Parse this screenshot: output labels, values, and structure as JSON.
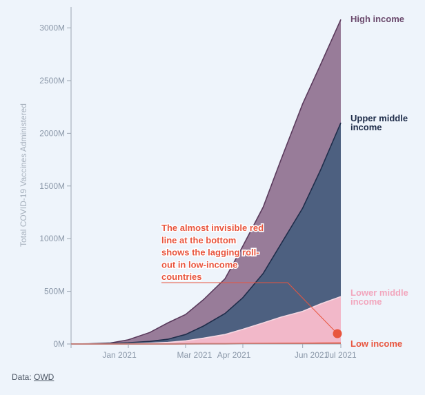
{
  "chart_data": {
    "type": "area",
    "stacked": true,
    "title": "",
    "xlabel": "",
    "ylabel": "Total COVID-19 Vaccines Administered",
    "x_ticks": [
      "Jan 2021",
      "Mar 2021",
      "Apr 2021",
      "Jun 2021",
      "Jul 2021"
    ],
    "y_ticks": [
      "0M",
      "500M",
      "1000M",
      "1500M",
      "2000M",
      "2500M",
      "3000M"
    ],
    "ylim": [
      0,
      3200
    ],
    "x": [
      "2020-12-01",
      "2020-12-15",
      "2021-01-01",
      "2021-01-15",
      "2021-02-01",
      "2021-02-15",
      "2021-03-01",
      "2021-03-15",
      "2021-04-01",
      "2021-04-15",
      "2021-05-01",
      "2021-05-15",
      "2021-06-01",
      "2021-06-15",
      "2021-07-01"
    ],
    "series": [
      {
        "name": "Low income",
        "color": "#e8553e",
        "values": [
          0,
          0,
          0,
          0,
          0,
          0,
          0.5,
          1,
          2,
          3,
          4,
          5,
          6,
          7,
          8
        ]
      },
      {
        "name": "Lower middle income",
        "color": "#f2b8c9",
        "values": [
          0,
          0,
          1,
          3,
          8,
          15,
          30,
          55,
          90,
          140,
          200,
          255,
          310,
          380,
          450
        ]
      },
      {
        "name": "Upper middle income",
        "color": "#4d6080",
        "values": [
          0,
          1,
          5,
          12,
          25,
          45,
          90,
          170,
          290,
          440,
          670,
          950,
          1290,
          1650,
          2100
        ]
      },
      {
        "name": "High income",
        "color": "#987c99",
        "values": [
          0,
          2,
          10,
          40,
          110,
          200,
          280,
          420,
          620,
          930,
          1300,
          1750,
          2280,
          2650,
          3080
        ]
      }
    ],
    "legend": "inline-right",
    "grid": false,
    "annotation": {
      "lines": [
        "The almost invisible red",
        "line at the bottom",
        "shows the lagging roll-",
        "out in low-income",
        "countries"
      ],
      "target": "Low income"
    }
  },
  "series_labels": {
    "high": [
      "High income"
    ],
    "upper_middle": [
      "Upper middle",
      "income"
    ],
    "lower_middle": [
      "Lower middle",
      "income"
    ],
    "low": [
      "Low income"
    ]
  },
  "source": {
    "prefix": "Data: ",
    "link": "OWD"
  }
}
